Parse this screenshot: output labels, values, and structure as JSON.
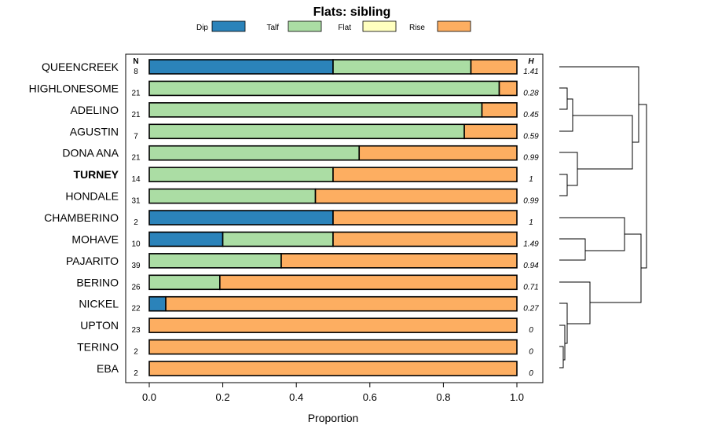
{
  "chart_data": {
    "type": "bar",
    "stacked": true,
    "orientation": "horizontal",
    "title": "Flats: sibling",
    "xlabel": "Proportion",
    "ylabel": "",
    "xlim": [
      0,
      1
    ],
    "x_ticks": [
      0.0,
      0.2,
      0.4,
      0.6,
      0.8,
      1.0
    ],
    "x_tick_labels": [
      "0.0",
      "0.2",
      "0.4",
      "0.6",
      "0.8",
      "1.0"
    ],
    "legend": [
      {
        "name": "Dip",
        "color": "#2b83ba"
      },
      {
        "name": "Talf",
        "color": "#abdda4"
      },
      {
        "name": "Flat",
        "color": "#ffffbf"
      },
      {
        "name": "Rise",
        "color": "#fdae61"
      }
    ],
    "n_header": "N",
    "h_header": "H",
    "highlight": "TURNEY",
    "categories": [
      "QUEENCREEK",
      "HIGHLONESOME",
      "ADELINO",
      "AGUSTIN",
      "DONA ANA",
      "TURNEY",
      "HONDALE",
      "CHAMBERINO",
      "MOHAVE",
      "PAJARITO",
      "BERINO",
      "NICKEL",
      "UPTON",
      "TERINO",
      "EBA"
    ],
    "n": [
      "8",
      "21",
      "21",
      "7",
      "21",
      "14",
      "31",
      "2",
      "10",
      "39",
      "26",
      "22",
      "23",
      "2",
      "2"
    ],
    "h": [
      "1.41",
      "0.28",
      "0.45",
      "0.59",
      "0.99",
      "1",
      "0.99",
      "1",
      "1.49",
      "0.94",
      "0.71",
      "0.27",
      "0",
      "0",
      "0"
    ],
    "series": [
      {
        "name": "Dip",
        "values": [
          0.5,
          0,
          0,
          0,
          0,
          0,
          0,
          0.5,
          0.2,
          0,
          0,
          0.045,
          0,
          0,
          0
        ]
      },
      {
        "name": "Talf",
        "values": [
          0.375,
          0.952,
          0.905,
          0.857,
          0.571,
          0.5,
          0.452,
          0,
          0.3,
          0.359,
          0.192,
          0,
          0,
          0,
          0
        ]
      },
      {
        "name": "Flat",
        "values": [
          0,
          0,
          0,
          0,
          0,
          0,
          0,
          0,
          0,
          0,
          0,
          0,
          0,
          0,
          0
        ]
      },
      {
        "name": "Rise",
        "values": [
          0.125,
          0.048,
          0.095,
          0.143,
          0.429,
          0.5,
          0.548,
          0.5,
          0.5,
          0.641,
          0.808,
          0.955,
          1,
          1,
          1
        ]
      }
    ]
  }
}
